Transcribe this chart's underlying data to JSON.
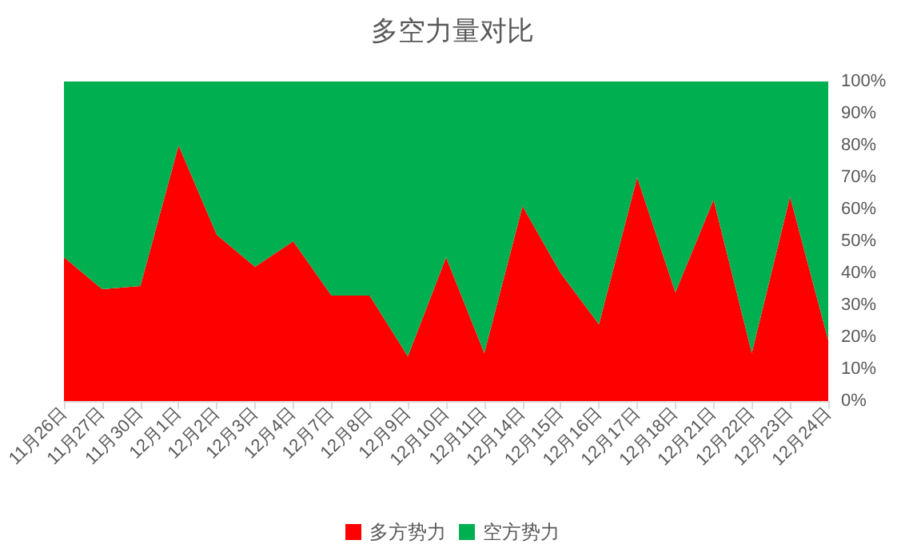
{
  "chart_data": {
    "type": "area",
    "title": "多空力量对比",
    "stacked": true,
    "categories": [
      "11月26日",
      "11月27日",
      "11月30日",
      "12月1日",
      "12月2日",
      "12月3日",
      "12月4日",
      "12月7日",
      "12月8日",
      "12月9日",
      "12月10日",
      "12月11日",
      "12月14日",
      "12月15日",
      "12月16日",
      "12月17日",
      "12月18日",
      "12月21日",
      "12月22日",
      "12月23日",
      "12月24日"
    ],
    "series": [
      {
        "name": "多方势力",
        "color": "#ff0000",
        "values": [
          45,
          35,
          36,
          80,
          52,
          42,
          50,
          33,
          33,
          14,
          45,
          15,
          61,
          40,
          24,
          70,
          34,
          63,
          15,
          64,
          19
        ]
      },
      {
        "name": "空方势力",
        "color": "#00b050",
        "values": [
          55,
          65,
          64,
          20,
          48,
          58,
          50,
          67,
          67,
          86,
          55,
          85,
          39,
          60,
          76,
          30,
          66,
          37,
          85,
          36,
          81
        ]
      }
    ],
    "ylim": [
      0,
      100
    ],
    "yticks": [
      {
        "value": 0,
        "label": "0%"
      },
      {
        "value": 10,
        "label": "10%"
      },
      {
        "value": 20,
        "label": "20%"
      },
      {
        "value": 30,
        "label": "30%"
      },
      {
        "value": 40,
        "label": "40%"
      },
      {
        "value": 50,
        "label": "50%"
      },
      {
        "value": 60,
        "label": "60%"
      },
      {
        "value": 70,
        "label": "70%"
      },
      {
        "value": 80,
        "label": "80%"
      },
      {
        "value": 90,
        "label": "90%"
      },
      {
        "value": 100,
        "label": "100%"
      }
    ],
    "grid": false,
    "legend": "bottom"
  }
}
